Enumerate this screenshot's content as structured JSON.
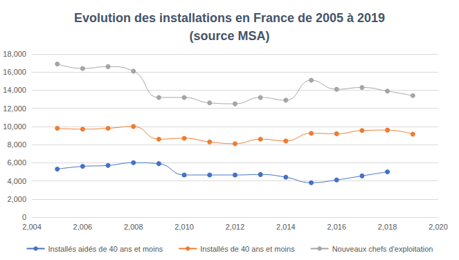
{
  "chart_data": {
    "type": "line",
    "title": "Evolution des installations en France de 2005 à 2019\n(source MSA)",
    "x": [
      2005,
      2006,
      2007,
      2008,
      2009,
      2010,
      2011,
      2012,
      2013,
      2014,
      2015,
      2016,
      2017,
      2018,
      2019
    ],
    "series": [
      {
        "name": "Installés aidés de 40 ans et moins",
        "color": "#4472c4",
        "values": [
          5300,
          5600,
          5700,
          6000,
          5900,
          4650,
          4650,
          4650,
          4700,
          4400,
          3800,
          4100,
          4550,
          5000,
          null
        ]
      },
      {
        "name": "Installés de 40 ans et moins",
        "color": "#ed7d31",
        "values": [
          9800,
          9700,
          9800,
          10000,
          8600,
          8700,
          8300,
          8100,
          8600,
          8400,
          9250,
          9200,
          9550,
          9600,
          9150
        ]
      },
      {
        "name": "Nouveaux chefs d'exploitation",
        "color": "#a5a5a5",
        "values": [
          16900,
          16400,
          16600,
          16100,
          13200,
          13200,
          12600,
          12500,
          13200,
          12900,
          15100,
          14100,
          14300,
          13900,
          13400
        ]
      }
    ],
    "xlim": [
      2004,
      2020
    ],
    "xticks": [
      2004,
      2006,
      2008,
      2010,
      2012,
      2014,
      2016,
      2018,
      2020
    ],
    "ylim": [
      0,
      18000
    ],
    "yticks": [
      0,
      2000,
      4000,
      6000,
      8000,
      10000,
      12000,
      14000,
      16000,
      18000
    ],
    "grid": true,
    "legend": "bottom",
    "marker": "circle"
  }
}
